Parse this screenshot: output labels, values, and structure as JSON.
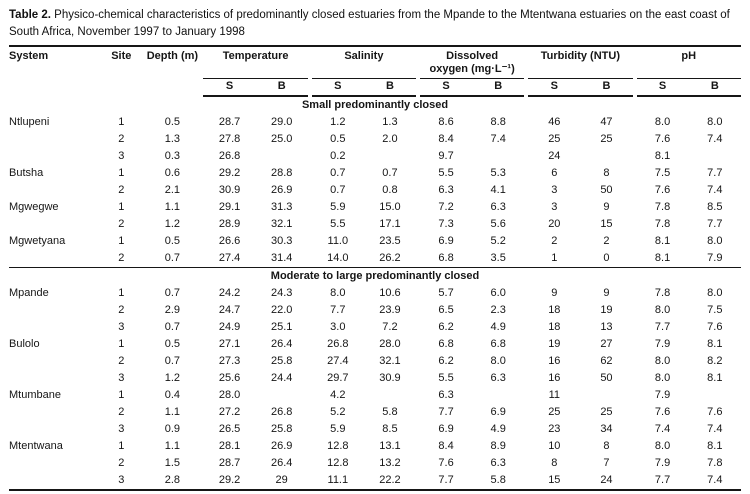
{
  "title": {
    "bold": "Table 2.",
    "text": "Physico-chemical characteristics of predominantly closed estuaries from the Mpande to the Mtentwana estuaries on the east coast of South Africa, November 1997 to January 1998"
  },
  "header": {
    "system": "System",
    "site": "Site",
    "depth": "Depth (m)",
    "groups": [
      {
        "line1": "Temperature",
        "line2": ""
      },
      {
        "line1": "Salinity",
        "line2": ""
      },
      {
        "line1": "Dissolved",
        "line2": "oxygen (mg·L⁻¹)"
      },
      {
        "line1": "Turbidity (NTU)",
        "line2": ""
      },
      {
        "line1": "pH",
        "line2": ""
      }
    ],
    "surface": "S",
    "bottom": "B"
  },
  "sections": [
    {
      "header": "Small predominantly closed",
      "rows": [
        {
          "system": "Ntlupeni",
          "site": "1",
          "depth": "0.5",
          "values": [
            "28.7",
            "29.0",
            "1.2",
            "1.3",
            "8.6",
            "8.8",
            "46",
            "47",
            "8.0",
            "8.0"
          ]
        },
        {
          "system": "",
          "site": "2",
          "depth": "1.3",
          "values": [
            "27.8",
            "25.0",
            "0.5",
            "2.0",
            "8.4",
            "7.4",
            "25",
            "25",
            "7.6",
            "7.4"
          ]
        },
        {
          "system": "",
          "site": "3",
          "depth": "0.3",
          "values": [
            "26.8",
            "",
            "0.2",
            "",
            "9.7",
            "",
            "24",
            "",
            "8.1",
            ""
          ]
        },
        {
          "system": "Butsha",
          "site": "1",
          "depth": "0.6",
          "values": [
            "29.2",
            "28.8",
            "0.7",
            "0.7",
            "5.5",
            "5.3",
            "6",
            "8",
            "7.5",
            "7.7"
          ]
        },
        {
          "system": "",
          "site": "2",
          "depth": "2.1",
          "values": [
            "30.9",
            "26.9",
            "0.7",
            "0.8",
            "6.3",
            "4.1",
            "3",
            "50",
            "7.6",
            "7.4"
          ]
        },
        {
          "system": "Mgwegwe",
          "site": "1",
          "depth": "1.1",
          "values": [
            "29.1",
            "31.3",
            "5.9",
            "15.0",
            "7.2",
            "6.3",
            "3",
            "9",
            "7.8",
            "8.5"
          ]
        },
        {
          "system": "",
          "site": "2",
          "depth": "1.2",
          "values": [
            "28.9",
            "32.1",
            "5.5",
            "17.1",
            "7.3",
            "5.6",
            "20",
            "15",
            "7.8",
            "7.7"
          ]
        },
        {
          "system": "Mgwetyana",
          "site": "1",
          "depth": "0.5",
          "values": [
            "26.6",
            "30.3",
            "11.0",
            "23.5",
            "6.9",
            "5.2",
            "2",
            "2",
            "8.1",
            "8.0"
          ]
        },
        {
          "system": "",
          "site": "2",
          "depth": "0.7",
          "values": [
            "27.4",
            "31.4",
            "14.0",
            "26.2",
            "6.8",
            "3.5",
            "1",
            "0",
            "8.1",
            "7.9"
          ]
        }
      ]
    },
    {
      "header": "Moderate to large predominantly closed",
      "rows": [
        {
          "system": "Mpande",
          "site": "1",
          "depth": "0.7",
          "values": [
            "24.2",
            "24.3",
            "8.0",
            "10.6",
            "5.7",
            "6.0",
            "9",
            "9",
            "7.8",
            "8.0"
          ]
        },
        {
          "system": "",
          "site": "2",
          "depth": "2.9",
          "values": [
            "24.7",
            "22.0",
            "7.7",
            "23.9",
            "6.5",
            "2.3",
            "18",
            "19",
            "8.0",
            "7.5"
          ]
        },
        {
          "system": "",
          "site": "3",
          "depth": "0.7",
          "values": [
            "24.9",
            "25.1",
            "3.0",
            "7.2",
            "6.2",
            "4.9",
            "18",
            "13",
            "7.7",
            "7.6"
          ]
        },
        {
          "system": "Bulolo",
          "site": "1",
          "depth": "0.5",
          "values": [
            "27.1",
            "26.4",
            "26.8",
            "28.0",
            "6.8",
            "6.8",
            "19",
            "27",
            "7.9",
            "8.1"
          ]
        },
        {
          "system": "",
          "site": "2",
          "depth": "0.7",
          "values": [
            "27.3",
            "25.8",
            "27.4",
            "32.1",
            "6.2",
            "8.0",
            "16",
            "62",
            "8.0",
            "8.2"
          ]
        },
        {
          "system": "",
          "site": "3",
          "depth": "1.2",
          "values": [
            "25.6",
            "24.4",
            "29.7",
            "30.9",
            "5.5",
            "6.3",
            "16",
            "50",
            "8.0",
            "8.1"
          ]
        },
        {
          "system": "Mtumbane",
          "site": "1",
          "depth": "0.4",
          "values": [
            "28.0",
            "",
            "4.2",
            "",
            "6.3",
            "",
            "11",
            "",
            "7.9",
            ""
          ]
        },
        {
          "system": "",
          "site": "2",
          "depth": "1.1",
          "values": [
            "27.2",
            "26.8",
            "5.2",
            "5.8",
            "7.7",
            "6.9",
            "25",
            "25",
            "7.6",
            "7.6"
          ]
        },
        {
          "system": "",
          "site": "3",
          "depth": "0.9",
          "values": [
            "26.5",
            "25.8",
            "5.9",
            "8.5",
            "6.9",
            "4.9",
            "23",
            "34",
            "7.4",
            "7.4"
          ]
        },
        {
          "system": "Mtentwana",
          "site": "1",
          "depth": "1.1",
          "values": [
            "28.1",
            "26.9",
            "12.8",
            "13.1",
            "8.4",
            "8.9",
            "10",
            "8",
            "8.0",
            "8.1"
          ]
        },
        {
          "system": "",
          "site": "2",
          "depth": "1.5",
          "values": [
            "28.7",
            "26.4",
            "12.8",
            "13.2",
            "7.6",
            "6.3",
            "8",
            "7",
            "7.9",
            "7.8"
          ]
        },
        {
          "system": "",
          "site": "3",
          "depth": "2.8",
          "values": [
            "29.2",
            "29",
            "11.1",
            "22.2",
            "7.7",
            "5.8",
            "15",
            "24",
            "7.7",
            "7.4"
          ]
        }
      ]
    }
  ]
}
